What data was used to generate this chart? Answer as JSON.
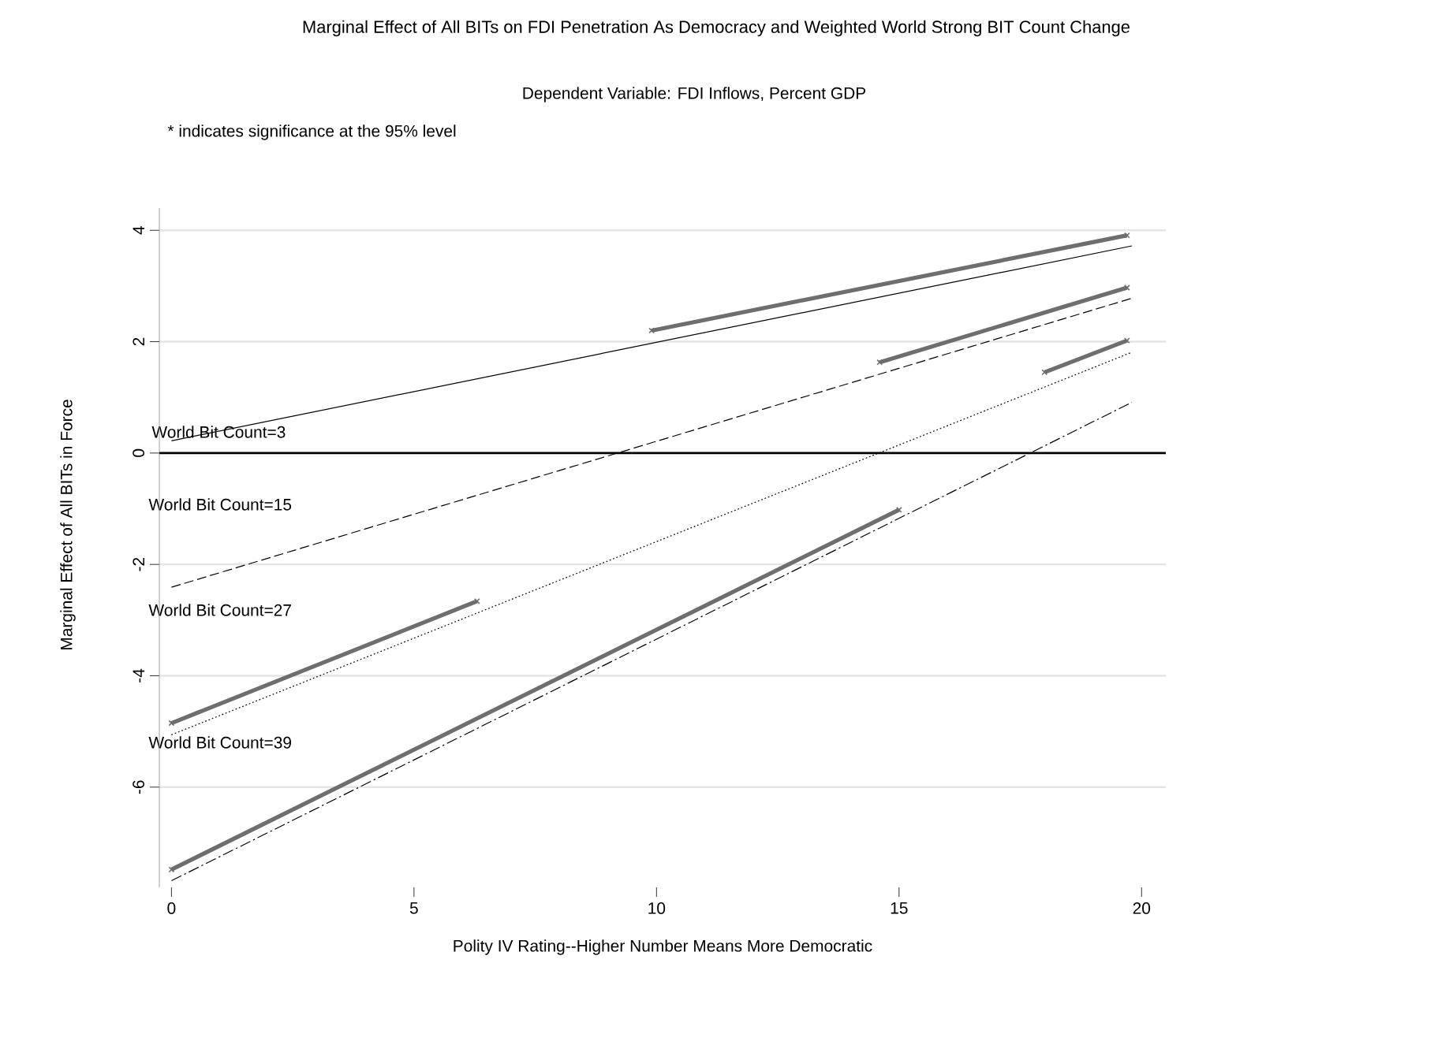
{
  "chart_data": {
    "type": "line",
    "title": "Marginal Effect of All BITs on FDI Penetration As Democracy and Weighted World Strong BIT Count Change",
    "subtitle": "Dependent Variable: FDI Inflows, Percent GDP",
    "xlabel": "Polity IV Rating--Higher Number Means More Democratic",
    "ylabel": "Marginal Effect of All BITs in Force",
    "xlim": [
      -0.25,
      20.5
    ],
    "ylim": [
      -7.8,
      4.4
    ],
    "xticks": [
      0,
      5,
      10,
      15,
      20
    ],
    "yticks": [
      -6,
      -4,
      -2,
      0,
      2,
      4
    ],
    "grid": "y",
    "series": [
      {
        "color": "#000000",
        "line_style": "solid",
        "x": [
          0,
          19.8
        ],
        "values": [
          0.22,
          3.72
        ]
      },
      {
        "color": "#000000",
        "line_style": "dashed",
        "x": [
          0,
          19.8
        ],
        "values": [
          -2.41,
          2.78
        ]
      },
      {
        "color": "#000000",
        "line_style": "dotted",
        "x": [
          0,
          19.8
        ],
        "values": [
          -5.06,
          1.81
        ]
      },
      {
        "color": "#000000",
        "line_style": "dashdot",
        "x": [
          0,
          19.8
        ],
        "values": [
          -7.68,
          0.91
        ]
      },
      {
        "color": "#6e6e6e",
        "line_style": "solid",
        "marker": "cross",
        "x": [
          9.9,
          19.7
        ],
        "values": [
          2.2,
          3.91
        ]
      },
      {
        "color": "#6e6e6e",
        "line_style": "solid",
        "marker": "cross",
        "x": [
          14.6,
          19.7
        ],
        "values": [
          1.63,
          2.97
        ]
      },
      {
        "color": "#6e6e6e",
        "line_style": "solid",
        "marker": "cross",
        "x": [
          0,
          6.3
        ],
        "values": [
          -4.85,
          -2.66
        ]
      },
      {
        "color": "#6e6e6e",
        "line_style": "solid",
        "marker": "cross",
        "x": [
          18.0,
          19.7
        ],
        "values": [
          1.45,
          2.02
        ]
      },
      {
        "color": "#6e6e6e",
        "line_style": "solid",
        "marker": "cross",
        "x": [
          0,
          15.0
        ],
        "values": [
          -7.48,
          -1.02
        ]
      }
    ],
    "ref_lines": [
      {
        "axis": "y",
        "value": 0,
        "color": "#000000"
      }
    ],
    "annotations": [
      "* indicates significance at the 95% level",
      "World Bit Count=3",
      "World Bit Count=15",
      "World Bit Count=27",
      "World Bit Count=39"
    ]
  }
}
